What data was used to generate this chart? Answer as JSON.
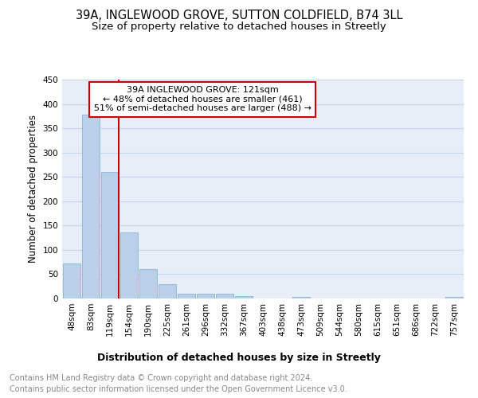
{
  "title1": "39A, INGLEWOOD GROVE, SUTTON COLDFIELD, B74 3LL",
  "title2": "Size of property relative to detached houses in Streetly",
  "xlabel": "Distribution of detached houses by size in Streetly",
  "ylabel": "Number of detached properties",
  "categories": [
    "48sqm",
    "83sqm",
    "119sqm",
    "154sqm",
    "190sqm",
    "225sqm",
    "261sqm",
    "296sqm",
    "332sqm",
    "367sqm",
    "403sqm",
    "438sqm",
    "473sqm",
    "509sqm",
    "544sqm",
    "580sqm",
    "615sqm",
    "651sqm",
    "686sqm",
    "722sqm",
    "757sqm"
  ],
  "values": [
    72,
    378,
    261,
    136,
    60,
    30,
    10,
    10,
    10,
    5,
    0,
    0,
    3,
    0,
    0,
    0,
    0,
    0,
    0,
    0,
    3
  ],
  "bar_color": "#b8d0e8",
  "bar_edge_color": "#8ab4d4",
  "vline_x_index": 2,
  "vline_color": "#cc0000",
  "annotation_text": "39A INGLEWOOD GROVE: 121sqm\n← 48% of detached houses are smaller (461)\n51% of semi-detached houses are larger (488) →",
  "annotation_box_color": "#cc0000",
  "annotation_bg": "white",
  "ylim": [
    0,
    450
  ],
  "yticks": [
    0,
    50,
    100,
    150,
    200,
    250,
    300,
    350,
    400,
    450
  ],
  "grid_color": "#c8d4e8",
  "bg_color": "#e8eef8",
  "footer_line1": "Contains HM Land Registry data © Crown copyright and database right 2024.",
  "footer_line2": "Contains public sector information licensed under the Open Government Licence v3.0.",
  "title_fontsize": 10.5,
  "subtitle_fontsize": 9.5,
  "xlabel_fontsize": 9,
  "ylabel_fontsize": 8.5,
  "tick_fontsize": 7.5,
  "annotation_fontsize": 8,
  "footer_fontsize": 7
}
